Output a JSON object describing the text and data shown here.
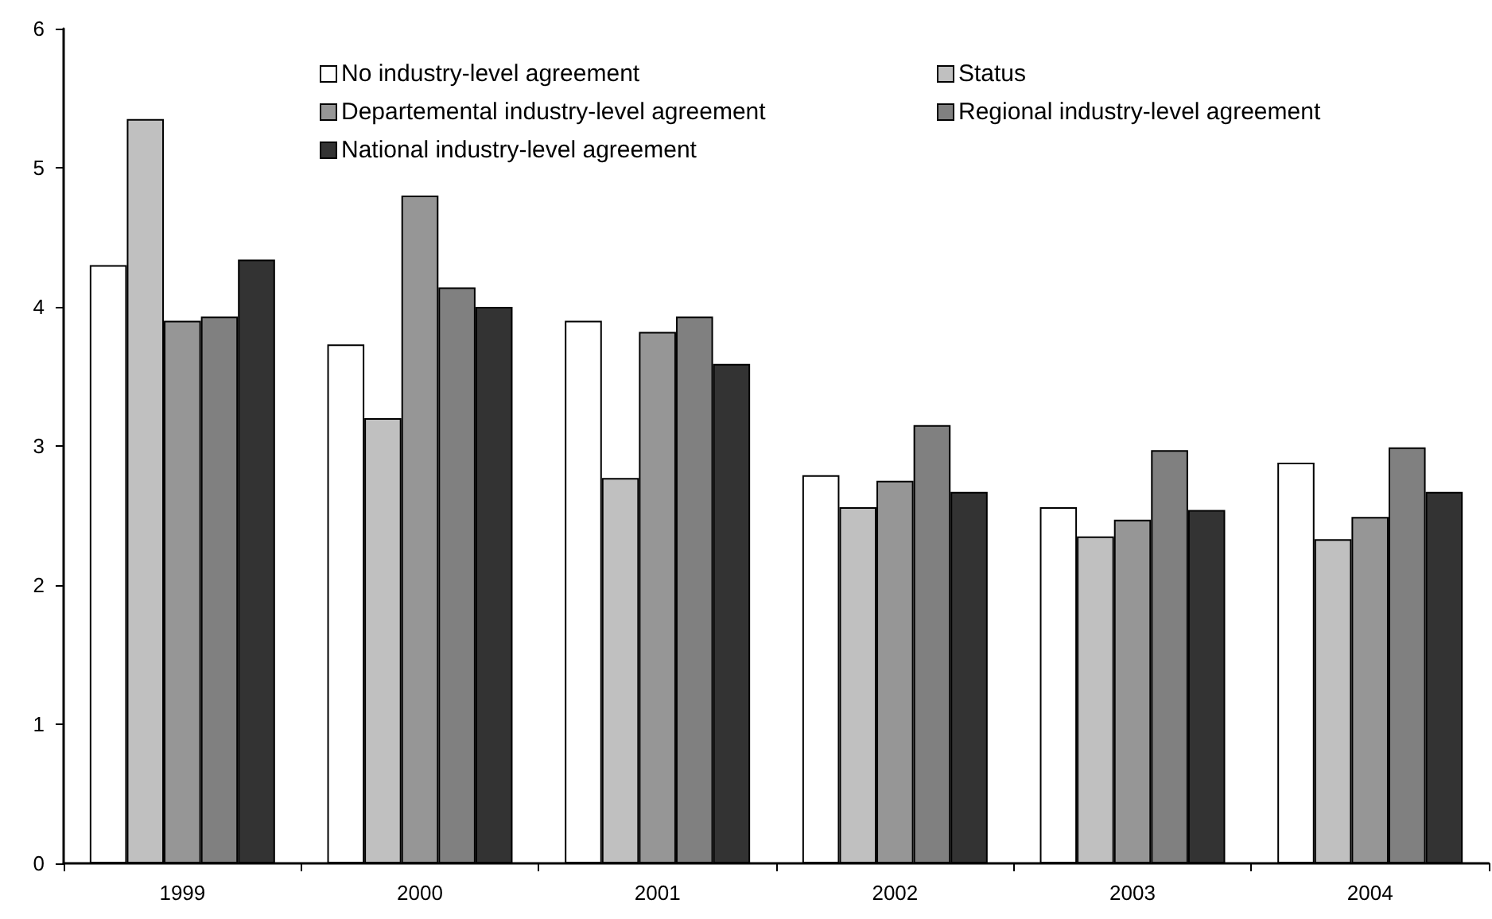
{
  "chart_data": {
    "type": "bar",
    "categories": [
      "1999",
      "2000",
      "2001",
      "2002",
      "2003",
      "2004"
    ],
    "series": [
      {
        "name": "No industry-level agreement",
        "color": "#ffffff",
        "values": [
          4.3,
          3.73,
          3.9,
          2.79,
          2.56,
          2.88
        ]
      },
      {
        "name": "Status",
        "color": "#c0c0c0",
        "values": [
          5.35,
          3.2,
          2.77,
          2.56,
          2.35,
          2.33
        ]
      },
      {
        "name": "Departemental industry-level agreement",
        "color": "#969696",
        "values": [
          3.9,
          4.8,
          3.82,
          2.75,
          2.47,
          2.49
        ]
      },
      {
        "name": "Regional industry-level agreement",
        "color": "#808080",
        "values": [
          3.93,
          4.14,
          3.93,
          3.15,
          2.97,
          2.99
        ]
      },
      {
        "name": "National industry-level agreement",
        "color": "#333333",
        "values": [
          4.34,
          4.0,
          3.59,
          2.67,
          2.54,
          2.67
        ]
      }
    ],
    "ylim": [
      0,
      6
    ],
    "yticks": [
      0,
      1,
      2,
      3,
      4,
      5,
      6
    ],
    "grid": false,
    "legend": "top"
  }
}
